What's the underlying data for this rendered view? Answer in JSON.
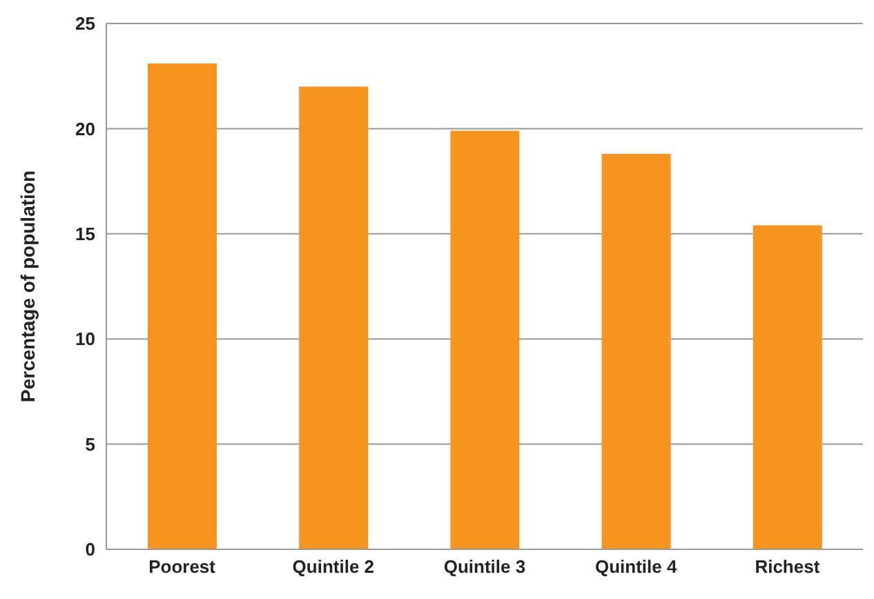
{
  "chart_data": {
    "type": "bar",
    "ylabel": "Percentage of population",
    "categories": [
      "Poorest",
      "Quintile 2",
      "Quintile 3",
      "Quintile 4",
      "Richest"
    ],
    "values": [
      23.1,
      22.0,
      19.9,
      18.8,
      15.4
    ],
    "color": "#f7941d",
    "ylim": [
      0,
      25
    ],
    "yticks": [
      0,
      5,
      10,
      15,
      20,
      25
    ],
    "grid": "y"
  }
}
